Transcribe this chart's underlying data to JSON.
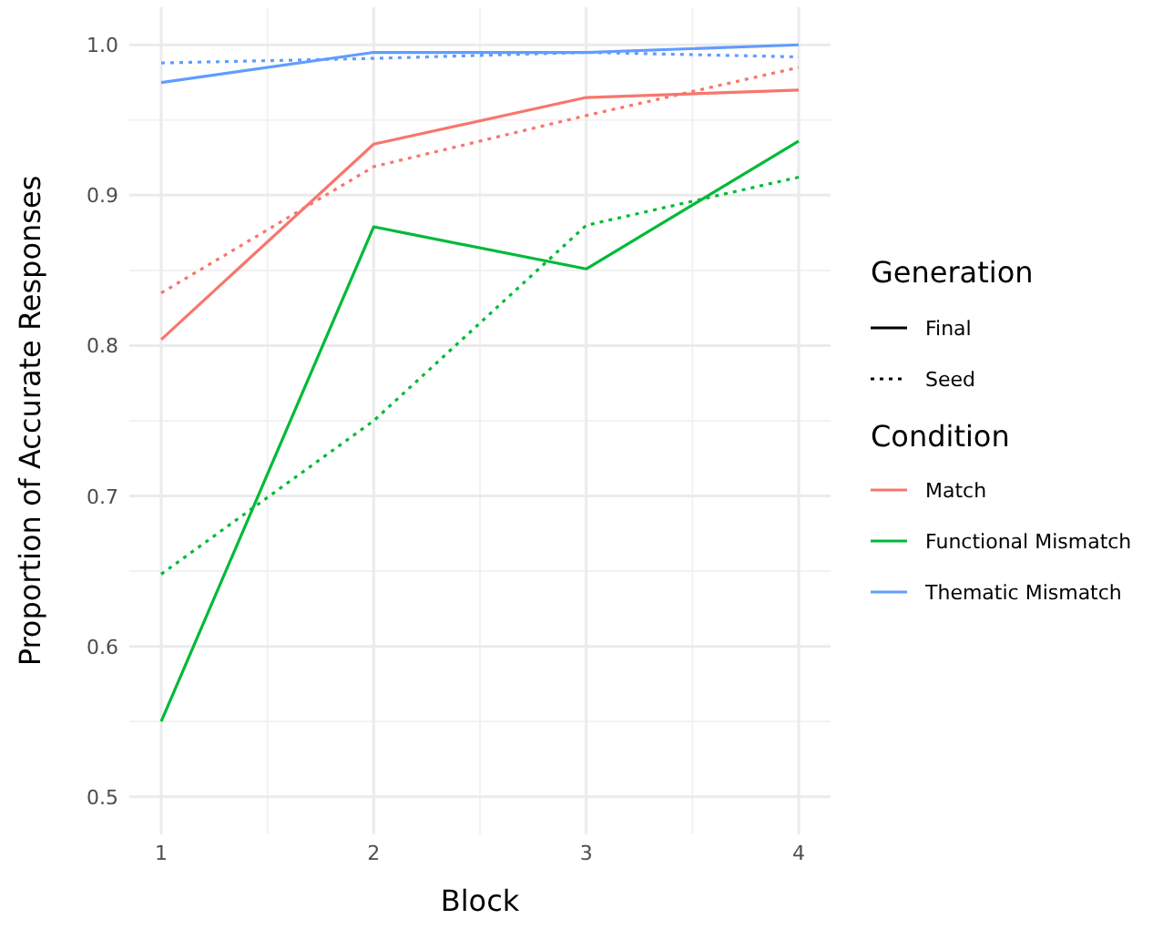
{
  "chart_data": {
    "type": "line",
    "xlabel": "Block",
    "ylabel": "Proportion of Accurate Responses",
    "x": [
      1,
      2,
      3,
      4
    ],
    "xlim": [
      0.85,
      4.15
    ],
    "xticks": [
      1,
      2,
      3,
      4
    ],
    "ylim": [
      0.475,
      1.025
    ],
    "yticks": [
      {
        "value": 0.5,
        "label": "0.5"
      },
      {
        "value": 0.6,
        "label": "0.6"
      },
      {
        "value": 0.7,
        "label": "0.7"
      },
      {
        "value": 0.8,
        "label": "0.8"
      },
      {
        "value": 0.9,
        "label": "0.9"
      },
      {
        "value": 1.0,
        "label": "1.0"
      }
    ],
    "grid": true,
    "legend": "right",
    "legend_title": "Condition",
    "series": [
      {
        "name": "Match",
        "color": "#f8766d",
        "line_style": "solid",
        "values": [
          0.804,
          0.934,
          0.965,
          0.97
        ]
      },
      {
        "name": "Functional Mismatch",
        "color": "#00ba38",
        "line_style": "solid",
        "values": [
          0.55,
          0.879,
          0.851,
          0.936
        ]
      },
      {
        "name": "Thematic Mismatch",
        "color": "#619cff",
        "line_style": "solid",
        "values": [
          0.975,
          0.995,
          0.995,
          1.0
        ]
      },
      {
        "color": "#f8766d",
        "line_style": "dotted",
        "values": [
          0.835,
          0.919,
          0.953,
          0.985
        ]
      },
      {
        "color": "#00ba38",
        "line_style": "dotted",
        "values": [
          0.648,
          0.75,
          0.88,
          0.912
        ]
      },
      {
        "color": "#619cff",
        "line_style": "dotted",
        "values": [
          0.988,
          0.991,
          0.995,
          0.992
        ]
      }
    ],
    "annotations": [
      "Generation",
      "Final",
      "Seed"
    ]
  }
}
